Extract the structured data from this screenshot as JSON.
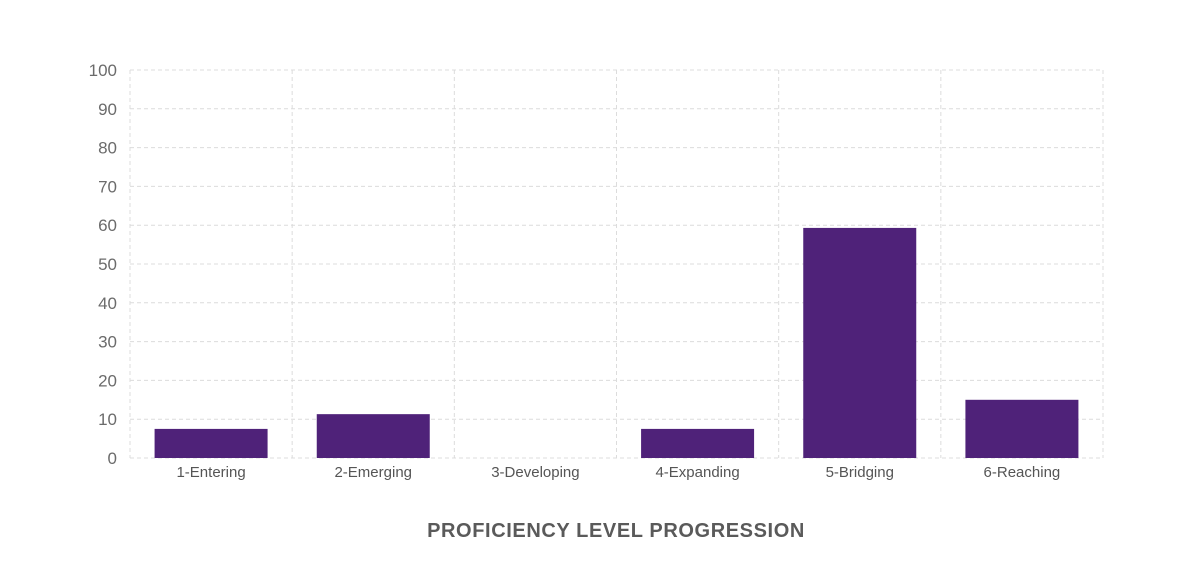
{
  "chart_data": {
    "type": "bar",
    "title": "",
    "xlabel": "PROFICIENCY LEVEL PROGRESSION",
    "ylabel": "",
    "categories": [
      "1-Entering",
      "2-Emerging",
      "3-Developing",
      "4-Expanding",
      "5-Bridging",
      "6-Reaching"
    ],
    "values": [
      7.5,
      11.3,
      0,
      7.5,
      59.3,
      15
    ],
    "ylim": [
      0,
      100
    ],
    "yticks": [
      "0",
      "10",
      "20",
      "30",
      "40",
      "50",
      "60",
      "70",
      "80",
      "90",
      "100"
    ],
    "grid": true,
    "legend": "none",
    "bar_color": "#4f2279",
    "grid_color": "#dcdcdc"
  }
}
